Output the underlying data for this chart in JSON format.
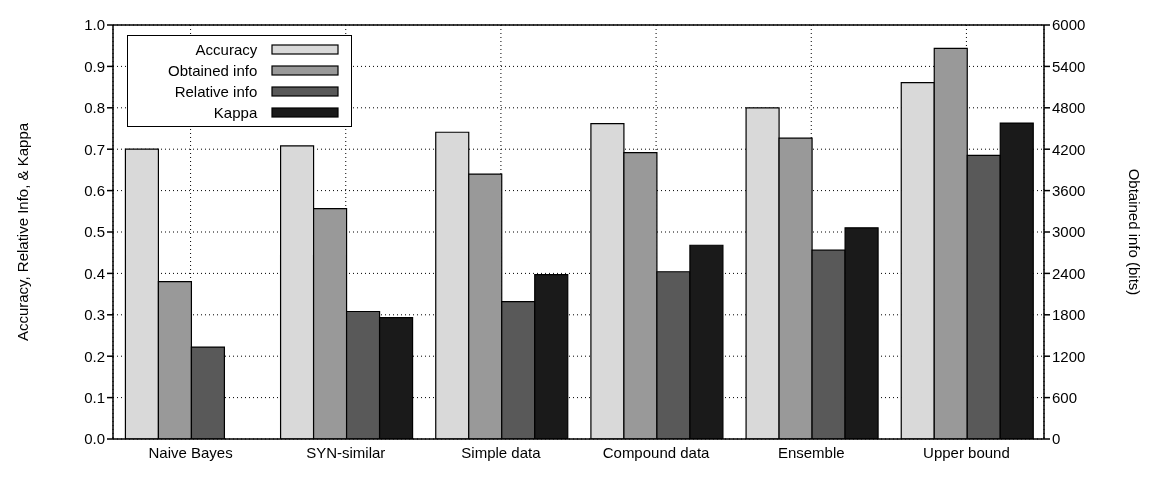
{
  "chart_data": {
    "type": "bar",
    "categories": [
      "Naive Bayes",
      "SYN-similar",
      "Simple data",
      "Compound data",
      "Ensemble",
      "Upper bound"
    ],
    "series": [
      {
        "name": "Accuracy",
        "color": "#d9d9d9",
        "values": [
          0.7,
          0.708,
          0.741,
          0.762,
          0.8,
          0.861
        ]
      },
      {
        "name": "Obtained info",
        "color": "#999999",
        "axis": "y2",
        "values": [
          2280,
          3340,
          3840,
          4150,
          4360,
          5660
        ]
      },
      {
        "name": "Relative info",
        "color": "#595959",
        "values": [
          0.222,
          0.308,
          0.332,
          0.404,
          0.456,
          0.685
        ]
      },
      {
        "name": "Kappa",
        "color": "#1a1a1a",
        "values": [
          null,
          0.293,
          0.397,
          0.468,
          0.51,
          0.763
        ]
      }
    ],
    "ylabel": "Accuracy, Relative Info, & Kappa",
    "y2label": "Obtained info (bits)",
    "ylim": [
      0,
      1
    ],
    "yticks": [
      {
        "value": 0,
        "label": "0.0"
      },
      0.1,
      0.2,
      0.3,
      0.4,
      0.5,
      0.6,
      0.7,
      0.8,
      0.9,
      {
        "value": 1,
        "label": "1.0"
      }
    ],
    "y2lim": [
      0,
      6000
    ],
    "y2ticks": [
      0,
      600,
      1200,
      1800,
      2400,
      3000,
      3600,
      4200,
      4800,
      5400,
      6000
    ],
    "grid": true,
    "legend": "top left"
  }
}
